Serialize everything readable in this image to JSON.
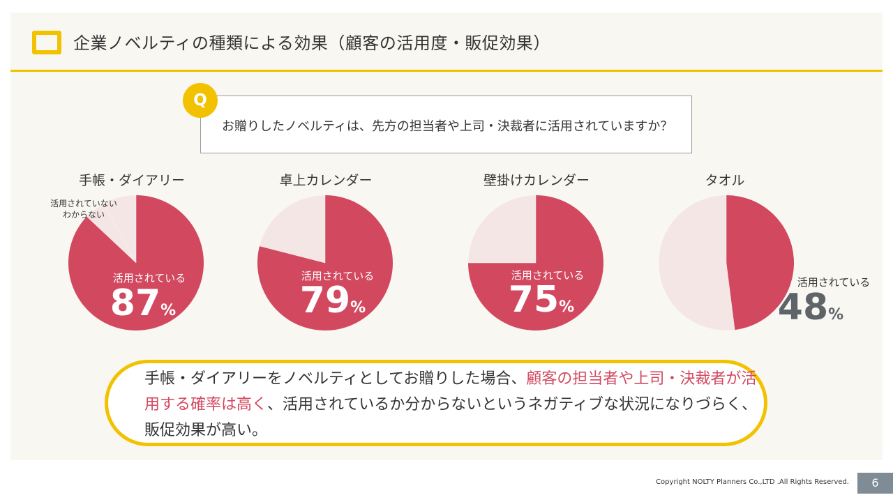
{
  "title": "企業ノベルティの種類による効果（顧客の活用度・販促効果）",
  "question": {
    "badge": "Q",
    "text": "お贈りしたノベルティは、先方の担当者や上司・決裁者に活用されていますか？"
  },
  "colors": {
    "accent": "#f2c200",
    "pie_main": "#d2485f",
    "pie_light": "#f5e6e6",
    "pie_text_white": "#ffffff",
    "pie_text_gray": "#5f6469"
  },
  "chart_data": [
    {
      "type": "pie",
      "title": "手帳・ダイアリー",
      "slices": [
        {
          "label": "活用されている",
          "value": 87
        },
        {
          "label": "活用されていない",
          "value": 5
        },
        {
          "label": "わからない",
          "value": 8
        }
      ],
      "main_label": "活用されている",
      "main_value": "87",
      "unit": "%",
      "other_label_lines": [
        "活用されていない",
        "わからない"
      ]
    },
    {
      "type": "pie",
      "title": "卓上カレンダー",
      "slices": [
        {
          "label": "活用されている",
          "value": 79
        },
        {
          "label": "活用されていない",
          "value": 21
        }
      ],
      "main_label": "活用されている",
      "main_value": "79",
      "unit": "%"
    },
    {
      "type": "pie",
      "title": "壁掛けカレンダー",
      "slices": [
        {
          "label": "活用されている",
          "value": 75
        },
        {
          "label": "活用されていない",
          "value": 25
        }
      ],
      "main_label": "活用されている",
      "main_value": "75",
      "unit": "%"
    },
    {
      "type": "pie",
      "title": "タオル",
      "slices": [
        {
          "label": "活用されている",
          "value": 48
        },
        {
          "label": "活用されていない",
          "value": 52
        }
      ],
      "main_label": "活用されている",
      "main_value": "48",
      "unit": "%"
    }
  ],
  "summary": {
    "part1": "手帳・ダイアリーをノベルティとしてお贈りした場合、",
    "highlight": "顧客の担当者や上司・決裁者が活用する確率は高く",
    "part2": "、活用されているか分からないというネガティブな状況になりづらく、販促効果が高い。"
  },
  "footer": {
    "copyright": "Copyright NOLTY Planners Co.,LTD .All Rights Reserved.",
    "page_number": "6"
  }
}
